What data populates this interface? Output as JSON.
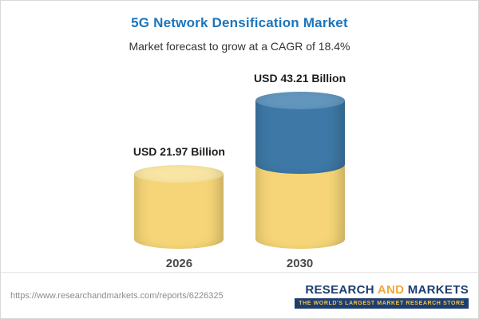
{
  "chart_data": {
    "type": "bar",
    "style": "3d-cylinder",
    "title": "5G Network Densification Market",
    "subtitle": "Market forecast to grow at a CAGR of 18.4%",
    "cagr_percent": 18.4,
    "unit": "USD Billion",
    "categories": [
      "2026",
      "2030"
    ],
    "values": [
      21.97,
      43.21
    ],
    "value_labels": [
      "USD 21.97 Billion",
      "USD 43.21 Billion"
    ],
    "grid": false,
    "legend": "none",
    "colors": {
      "gold": "#F5D577",
      "gold_cap": "#F9E5A3",
      "blue": "#3E78A6",
      "blue_cap": "#6296BD",
      "title_blue": "#1B75BC"
    },
    "bars": [
      {
        "category": "2026",
        "total": 21.97,
        "segments": [
          {
            "color": "gold",
            "value": 21.97
          }
        ]
      },
      {
        "category": "2030",
        "total": 43.21,
        "segments": [
          {
            "color": "gold",
            "value": 21.97
          },
          {
            "color": "blue",
            "value": 21.24
          }
        ]
      }
    ]
  },
  "footer": {
    "url": "https://www.researchandmarkets.com/reports/6226325",
    "logo": {
      "word_research": "RESEARCH",
      "word_and": "AND",
      "word_markets": "MARKETS",
      "tagline": "THE WORLD'S LARGEST MARKET RESEARCH STORE",
      "colors": {
        "navy": "#1C3E70",
        "gold": "#EFA93D",
        "tagline_bg": "#1C3E70",
        "tagline_text": "#F2C14E"
      }
    }
  }
}
